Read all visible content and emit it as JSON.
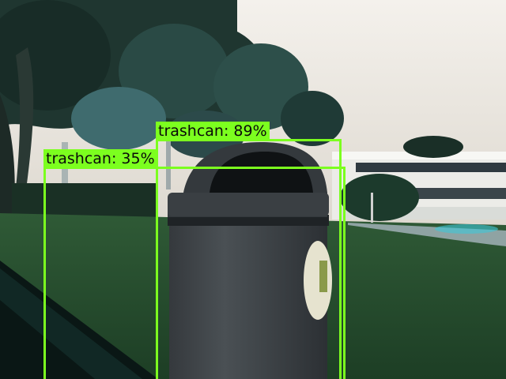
{
  "detections": [
    {
      "label": "trashcan: 35%",
      "class_name": "trashcan",
      "confidence": 0.35
    },
    {
      "label": "trashcan: 89%",
      "class_name": "trashcan",
      "confidence": 0.89
    }
  ],
  "colors": {
    "box": "#7cff1f",
    "sky": "#e9e4dd",
    "grass": "#27502f",
    "trashcan_body": "#3e4347",
    "trashcan_lid": "#2d3236",
    "building": "#ebebe6"
  }
}
